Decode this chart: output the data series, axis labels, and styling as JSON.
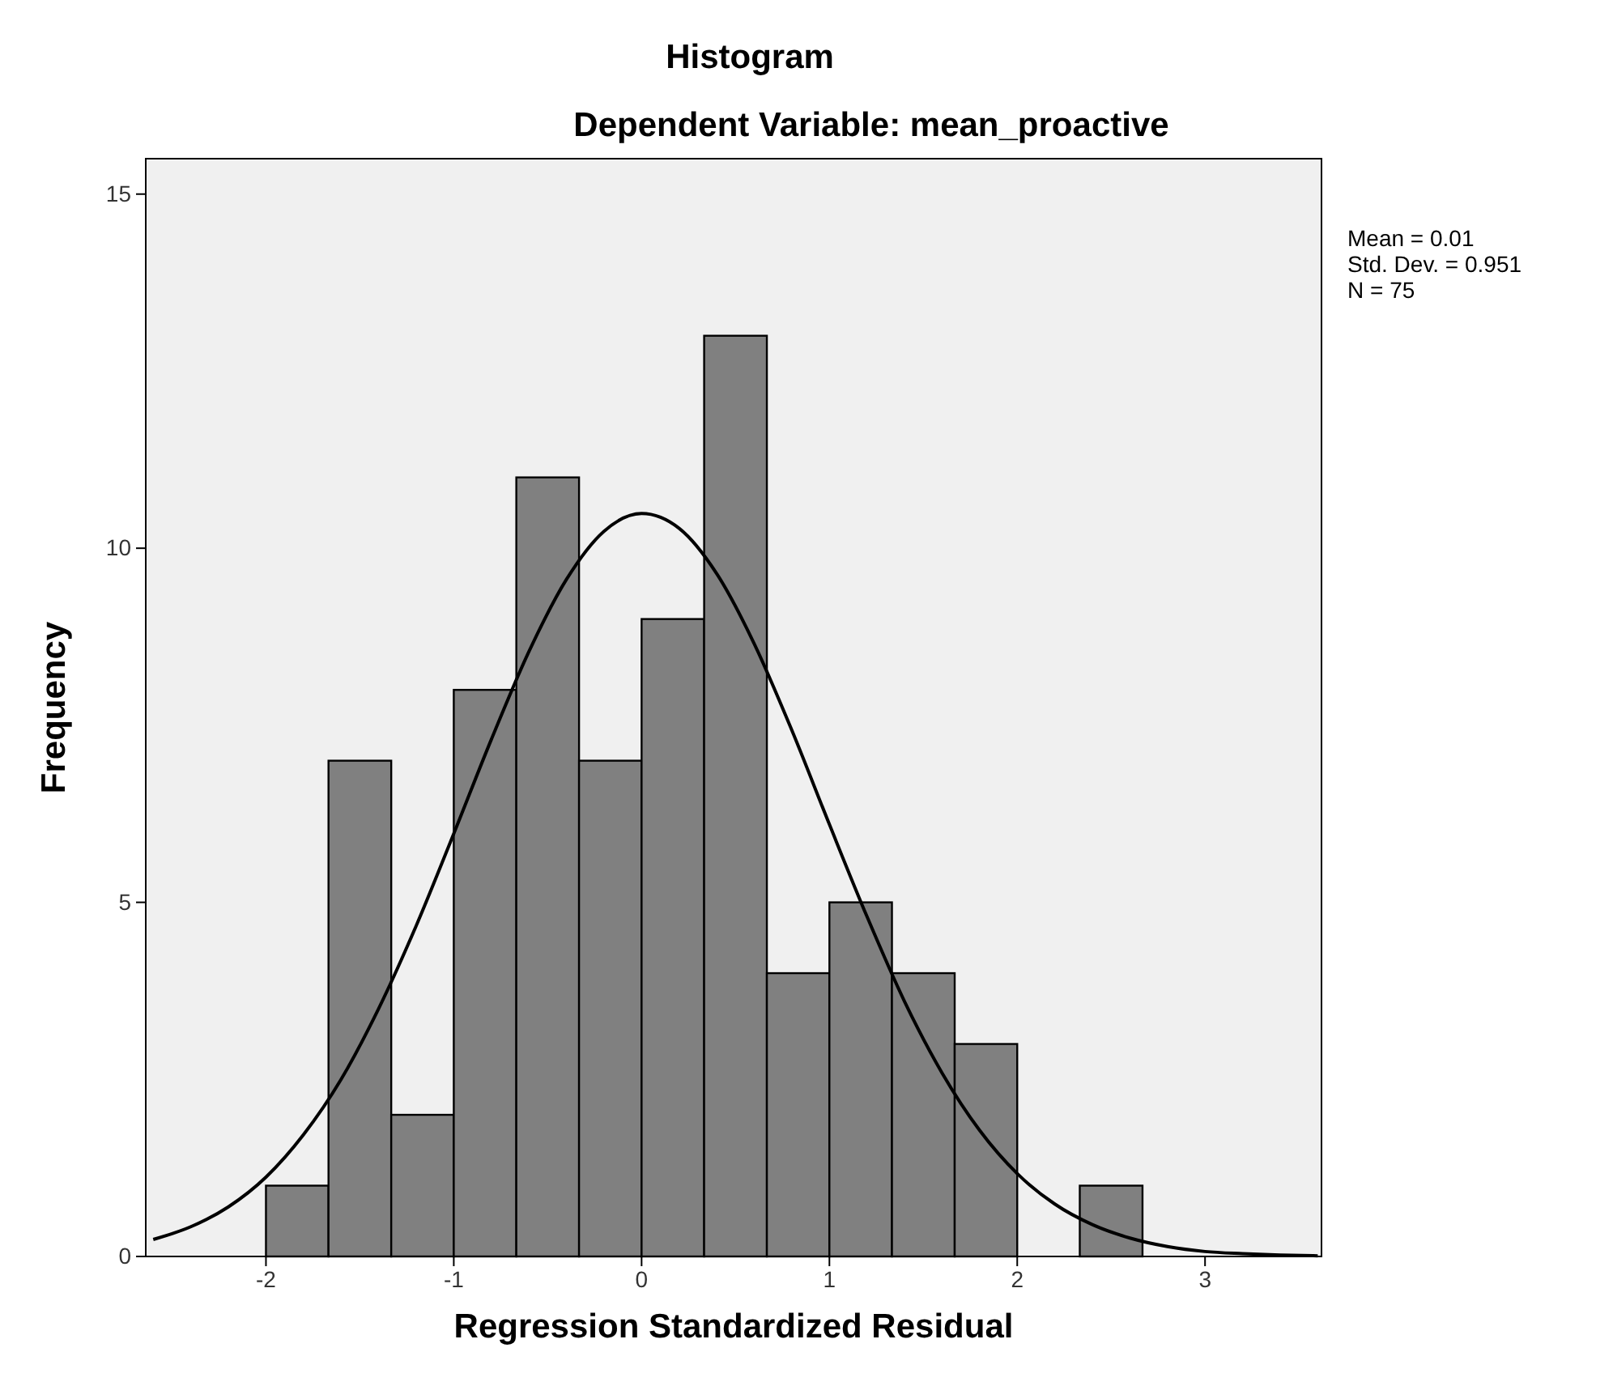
{
  "chart_data": {
    "type": "histogram",
    "title": "Histogram",
    "subtitle": "Dependent Variable: mean_proactive",
    "xlabel": "Regression Standardized Residual",
    "ylabel": "Frequency",
    "bins": [
      -2,
      -1.667,
      -1.333,
      -1,
      -0.667,
      -0.333,
      0,
      0.333,
      0.667,
      1,
      1.333,
      1.667,
      2,
      2.333,
      2.667
    ],
    "series": [
      {
        "color": "#808080",
        "values": [
          1,
          7,
          2,
          8,
          11,
          7,
          9,
          13,
          4,
          5,
          4,
          3,
          0,
          1
        ]
      },
      {
        "type": "line",
        "color": "#000000",
        "x": [
          -2.6,
          -2.4,
          -2.2,
          -2,
          -1.8,
          -1.6,
          -1.4,
          -1.2,
          -1,
          -0.8,
          -0.6,
          -0.4,
          -0.2,
          0,
          0.2,
          0.4,
          0.6,
          0.8,
          1,
          1.2,
          1.4,
          1.6,
          1.8,
          2,
          2.2,
          2.4,
          2.6,
          2.8,
          3,
          3.2,
          3.4,
          3.6
        ],
        "values": [
          0.24,
          0.42,
          0.7,
          1.12,
          1.72,
          2.5,
          3.5,
          4.67,
          5.97,
          7.3,
          8.54,
          9.56,
          10.24,
          10.49,
          10.28,
          9.64,
          8.65,
          7.43,
          6.1,
          4.8,
          3.6,
          2.59,
          1.78,
          1.17,
          0.74,
          0.45,
          0.26,
          0.14,
          0.07,
          0.04,
          0.02,
          0.01
        ]
      }
    ],
    "xlim": [
      -2.64,
      3.62
    ],
    "xticks": [
      -2,
      -1,
      0,
      1,
      2,
      3
    ],
    "ylim": [
      0,
      15.5
    ],
    "yticks": [
      0,
      5,
      10,
      15
    ],
    "grid": false,
    "marker": "none",
    "line_style": "solid",
    "annotations": [
      "Mean = 0.01",
      "Std. Dev. = 0.951",
      "N = 75"
    ]
  }
}
